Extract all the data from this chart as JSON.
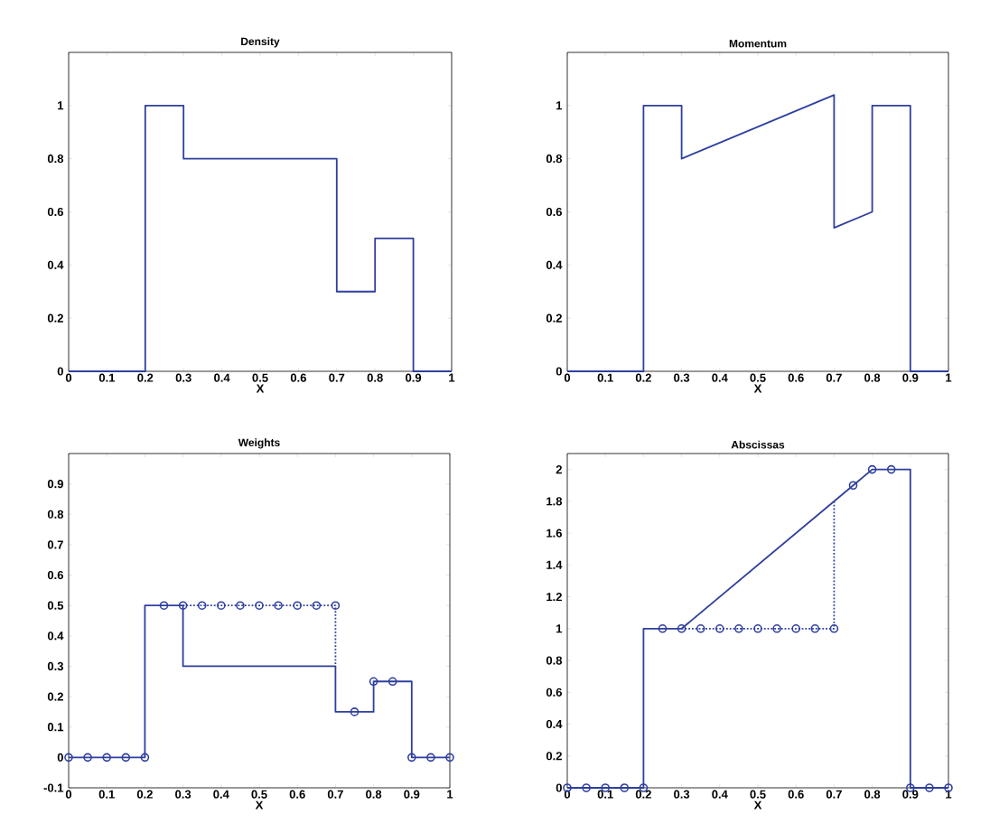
{
  "chart_data": [
    {
      "type": "line",
      "title": "Density",
      "xlabel": "X",
      "xlim": [
        0,
        1
      ],
      "ylim": [
        0,
        1.2
      ],
      "xticks": [
        0,
        0.1,
        0.2,
        0.3,
        0.4,
        0.5,
        0.6,
        0.7,
        0.8,
        0.9,
        1
      ],
      "yticks": [
        0,
        0.2,
        0.4,
        0.6,
        0.8,
        1
      ],
      "series": [
        {
          "color": "#2e3f9e",
          "line_style": "solid",
          "x": [
            0,
            0.2,
            0.2,
            0.3,
            0.3,
            0.7,
            0.7,
            0.8,
            0.8,
            0.9,
            0.9,
            1
          ],
          "values": [
            0,
            0,
            1,
            1,
            0.8,
            0.8,
            0.3,
            0.3,
            0.5,
            0.5,
            0,
            0
          ]
        }
      ]
    },
    {
      "type": "line",
      "title": "Momentum",
      "xlabel": "X",
      "xlim": [
        0,
        1
      ],
      "ylim": [
        0,
        1.2
      ],
      "xticks": [
        0,
        0.1,
        0.2,
        0.3,
        0.4,
        0.5,
        0.6,
        0.7,
        0.8,
        0.9,
        1
      ],
      "yticks": [
        0,
        0.2,
        0.4,
        0.6,
        0.8,
        1
      ],
      "series": [
        {
          "color": "#2e3f9e",
          "line_style": "solid",
          "x": [
            0,
            0.2,
            0.2,
            0.3,
            0.3,
            0.7,
            0.7,
            0.8,
            0.8,
            0.9,
            0.9,
            1
          ],
          "values": [
            0,
            0,
            1,
            1,
            0.8,
            1.04,
            0.54,
            0.6,
            1,
            1,
            0,
            0
          ]
        }
      ]
    },
    {
      "type": "line",
      "title": "Weights",
      "xlabel": "X",
      "xlim": [
        0,
        1
      ],
      "ylim": [
        -0.1,
        1
      ],
      "xticks": [
        0,
        0.1,
        0.2,
        0.3,
        0.4,
        0.5,
        0.6,
        0.7,
        0.8,
        0.9,
        1
      ],
      "yticks": [
        -0.1,
        0,
        0.1,
        0.2,
        0.3,
        0.4,
        0.5,
        0.6,
        0.7,
        0.8,
        0.9
      ],
      "series": [
        {
          "color": "#2e3f9e",
          "line_style": "solid",
          "x": [
            0,
            0.2,
            0.2,
            0.3,
            0.3,
            0.7,
            0.7,
            0.8,
            0.8,
            0.9,
            0.9,
            1
          ],
          "values": [
            0,
            0,
            0.5,
            0.5,
            0.3,
            0.3,
            0.15,
            0.15,
            0.25,
            0.25,
            0,
            0
          ]
        },
        {
          "color": "#2e3f9e",
          "line_style": "dotted",
          "x": [
            0.3,
            0.7,
            0.7
          ],
          "values": [
            0.5,
            0.5,
            0.3
          ]
        },
        {
          "type": "scatter",
          "color": "#2e3f9e",
          "marker": "circle",
          "x": [
            0,
            0.05,
            0.1,
            0.15,
            0.2,
            0.25,
            0.3,
            0.35,
            0.4,
            0.45,
            0.5,
            0.55,
            0.6,
            0.65,
            0.7,
            0.75,
            0.8,
            0.85,
            0.9,
            0.95,
            1
          ],
          "values": [
            0,
            0,
            0,
            0,
            0,
            0.5,
            0.5,
            0.5,
            0.5,
            0.5,
            0.5,
            0.5,
            0.5,
            0.5,
            0.5,
            0.15,
            0.25,
            0.25,
            0,
            0,
            0
          ]
        }
      ]
    },
    {
      "type": "line",
      "title": "Abscissas",
      "xlabel": "X",
      "xlim": [
        0,
        1
      ],
      "ylim": [
        0,
        2.1
      ],
      "xticks": [
        0,
        0.1,
        0.2,
        0.3,
        0.4,
        0.5,
        0.6,
        0.7,
        0.8,
        0.9,
        1
      ],
      "yticks": [
        0,
        0.2,
        0.4,
        0.6,
        0.8,
        1,
        1.2,
        1.4,
        1.6,
        1.8,
        2
      ],
      "series": [
        {
          "color": "#2e3f9e",
          "line_style": "solid",
          "x": [
            0,
            0.2,
            0.2,
            0.3,
            0.75,
            0.8,
            0.9,
            0.9,
            1
          ],
          "values": [
            0,
            0,
            1,
            1,
            1.9,
            2,
            2,
            0,
            0
          ]
        },
        {
          "color": "#2e3f9e",
          "line_style": "dotted",
          "x": [
            0.3,
            0.7,
            0.7
          ],
          "values": [
            1,
            1,
            1.8
          ]
        },
        {
          "type": "scatter",
          "color": "#2e3f9e",
          "marker": "circle",
          "x": [
            0,
            0.05,
            0.1,
            0.15,
            0.2,
            0.25,
            0.3,
            0.35,
            0.4,
            0.45,
            0.5,
            0.55,
            0.6,
            0.65,
            0.7,
            0.75,
            0.8,
            0.85,
            0.9,
            0.95,
            1
          ],
          "values": [
            0,
            0,
            0,
            0,
            0,
            1,
            1,
            1,
            1,
            1,
            1,
            1,
            1,
            1,
            1,
            1.9,
            2,
            2,
            0,
            0,
            0
          ]
        }
      ]
    }
  ]
}
